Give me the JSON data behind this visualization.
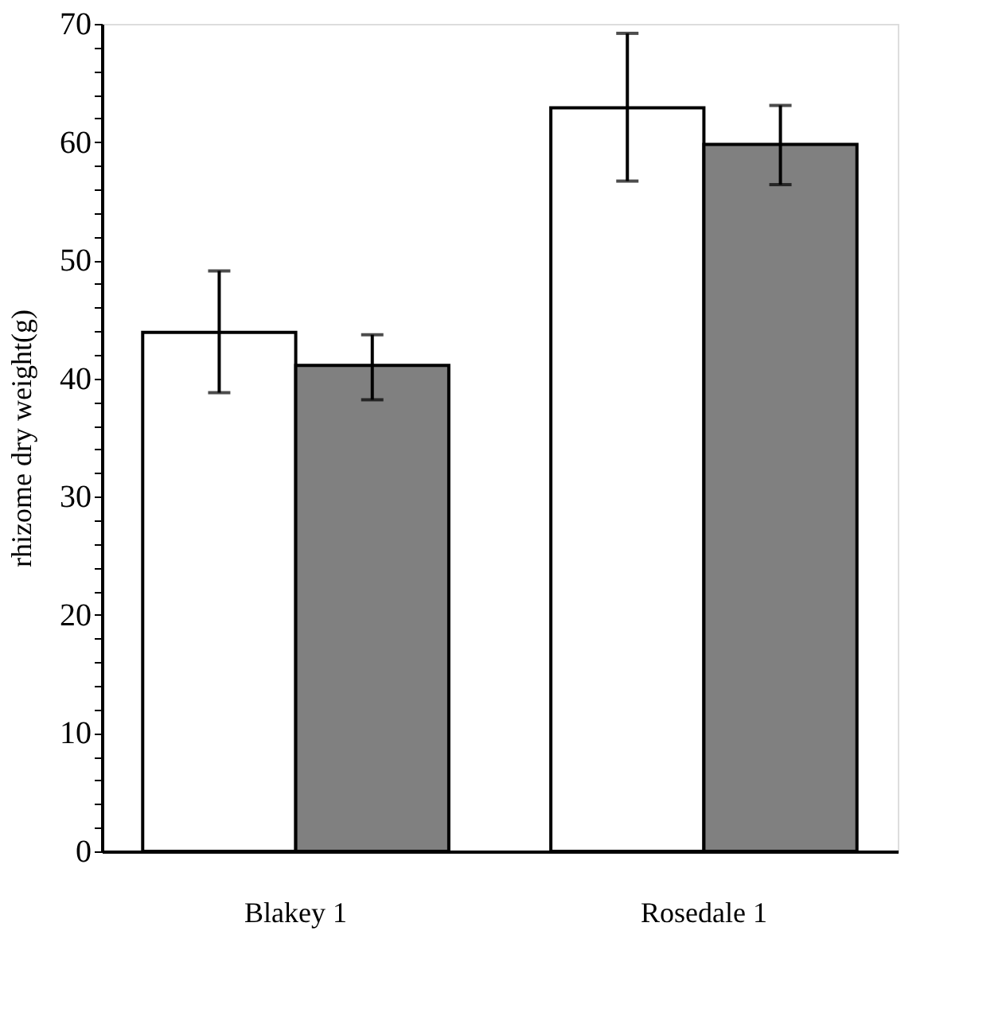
{
  "chart_data": {
    "type": "bar",
    "ylabel": "rhizome dry weight(g)",
    "categories": [
      "Blakey 1",
      "Rosedale 1"
    ],
    "series": [
      {
        "color": "#ffffff",
        "values": [
          43.9,
          62.9
        ],
        "errors": [
          [
            38.8,
            49.1
          ],
          [
            56.7,
            69.2
          ]
        ]
      },
      {
        "color": "#808080",
        "values": [
          41.1,
          59.8
        ],
        "errors": [
          [
            38.2,
            43.7
          ],
          [
            56.4,
            63.1
          ]
        ]
      }
    ],
    "ylim": [
      0,
      70
    ],
    "yticks": [
      0,
      {
        "value": 2,
        "label": null
      },
      {
        "value": 4,
        "label": null
      },
      {
        "value": 6,
        "label": null
      },
      {
        "value": 8,
        "label": null
      },
      10,
      {
        "value": 12,
        "label": null
      },
      {
        "value": 14,
        "label": null
      },
      {
        "value": 16,
        "label": null
      },
      {
        "value": 18,
        "label": null
      },
      20,
      {
        "value": 22,
        "label": null
      },
      {
        "value": 24,
        "label": null
      },
      {
        "value": 26,
        "label": null
      },
      {
        "value": 28,
        "label": null
      },
      30,
      {
        "value": 32,
        "label": null
      },
      {
        "value": 34,
        "label": null
      },
      {
        "value": 36,
        "label": null
      },
      {
        "value": 38,
        "label": null
      },
      40,
      {
        "value": 42,
        "label": null
      },
      {
        "value": 44,
        "label": null
      },
      {
        "value": 46,
        "label": null
      },
      {
        "value": 48,
        "label": null
      },
      50,
      {
        "value": 52,
        "label": null
      },
      {
        "value": 54,
        "label": null
      },
      {
        "value": 56,
        "label": null
      },
      {
        "value": 58,
        "label": null
      },
      60,
      {
        "value": 62,
        "label": null
      },
      {
        "value": 64,
        "label": null
      },
      {
        "value": 66,
        "label": null
      },
      {
        "value": 68,
        "label": null
      },
      70
    ],
    "grid": false,
    "legend": false
  }
}
